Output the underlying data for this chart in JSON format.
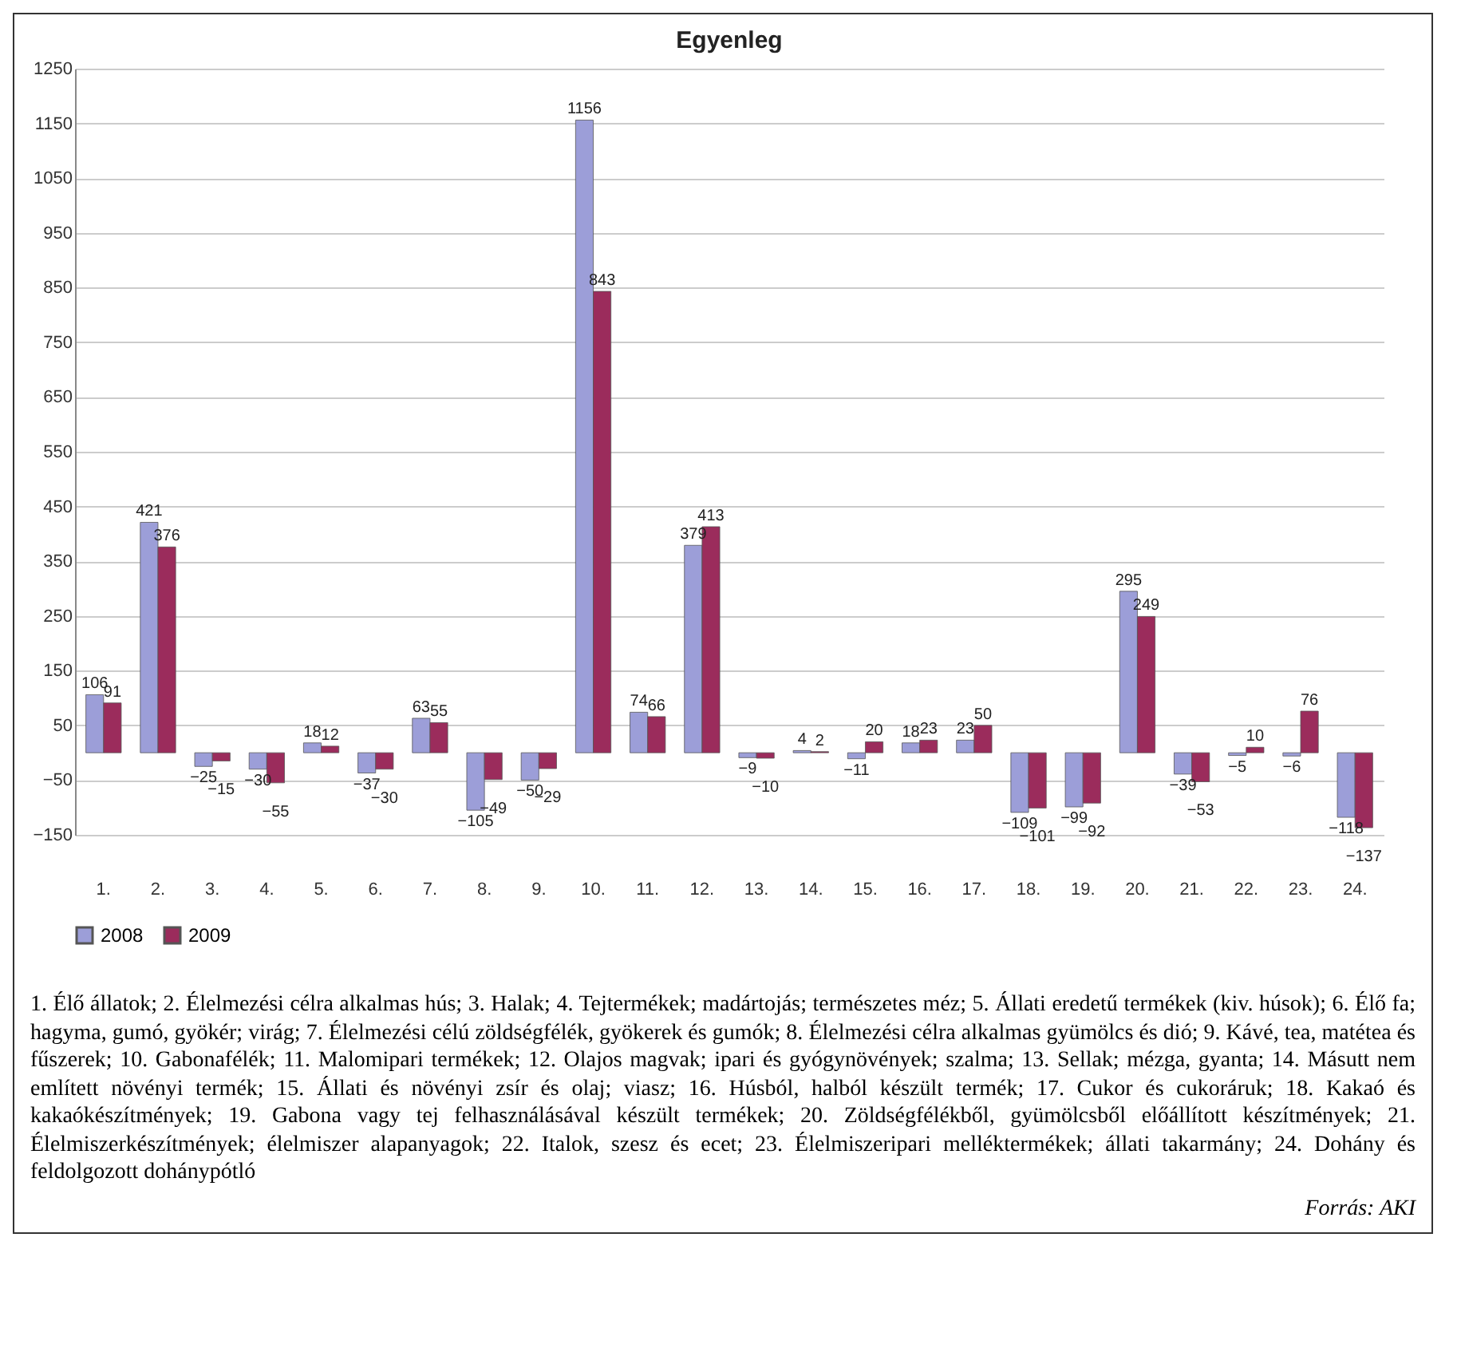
{
  "chart_data": {
    "type": "bar",
    "title": "Egyenleg",
    "categories": [
      "1.",
      "2.",
      "3.",
      "4.",
      "5.",
      "6.",
      "7.",
      "8.",
      "9.",
      "10.",
      "11.",
      "12.",
      "13.",
      "14.",
      "15.",
      "16.",
      "17.",
      "18.",
      "19.",
      "20.",
      "21.",
      "22.",
      "23.",
      "24."
    ],
    "series": [
      {
        "name": "2008",
        "color": "#9c9ed8",
        "values": [
          106,
          421,
          -25,
          -30,
          18,
          -37,
          63,
          -105,
          -50,
          1156,
          74,
          379,
          -9,
          4,
          -11,
          18,
          23,
          -109,
          -99,
          295,
          -39,
          -5,
          -6,
          -118
        ]
      },
      {
        "name": "2009",
        "color": "#9b2c5c",
        "values": [
          91,
          376,
          -15,
          -55,
          12,
          -30,
          55,
          -49,
          -29,
          843,
          66,
          413,
          -10,
          2,
          20,
          23,
          50,
          -101,
          -92,
          249,
          -53,
          10,
          76,
          -137
        ]
      }
    ],
    "ylim": [
      -150,
      1250
    ],
    "yticks": [
      -150,
      -50,
      50,
      150,
      250,
      350,
      450,
      550,
      650,
      750,
      850,
      950,
      1050,
      1150,
      1250
    ],
    "grid": "y",
    "legend": "bottom",
    "data_labels": true,
    "annotations": [
      "1. Élő állatok; 2. Élelmezési célra alkalmas hús; 3. Halak; 4. Tejtermékek; madártojás; természetes méz; 5. Állati eredetű termékek (kiv. húsok); 6. Élő fa; hagyma, gumó, gyökér; virág; 7. Élelmezési célú zöldségfélék, gyökerek és gumók; 8. Élelmezési célra alkalmas gyümölcs és dió; 9. Kávé, tea, matétea és fűszerek; 10. Gabonafélék; 11. Malomipari termékek; 12. Olajos magvak; ipari és gyógynövények; szalma; 13. Sellak; mézga, gyanta; 14. Másutt nem említett növényi termék; 15. Állati és növényi zsír és olaj; viasz; 16. Húsból, halból készült termék; 17. Cukor és cukoráruk; 18. Kakaó és kakaókészítmények; 19. Gabona vagy tej felhasználásával készült termékek; 20. Zöldségfélékből, gyümölcsből előállított készítmények; 21. Élelmiszerkészítmények; élelmiszer alapanyagok; 22. Italok, szesz és ecet; 23. Élelmiszeripari melléktermékek; állati takarmány; 24. Dohány és feldolgozott dohánypótló",
      "Forrás: AKI"
    ]
  }
}
